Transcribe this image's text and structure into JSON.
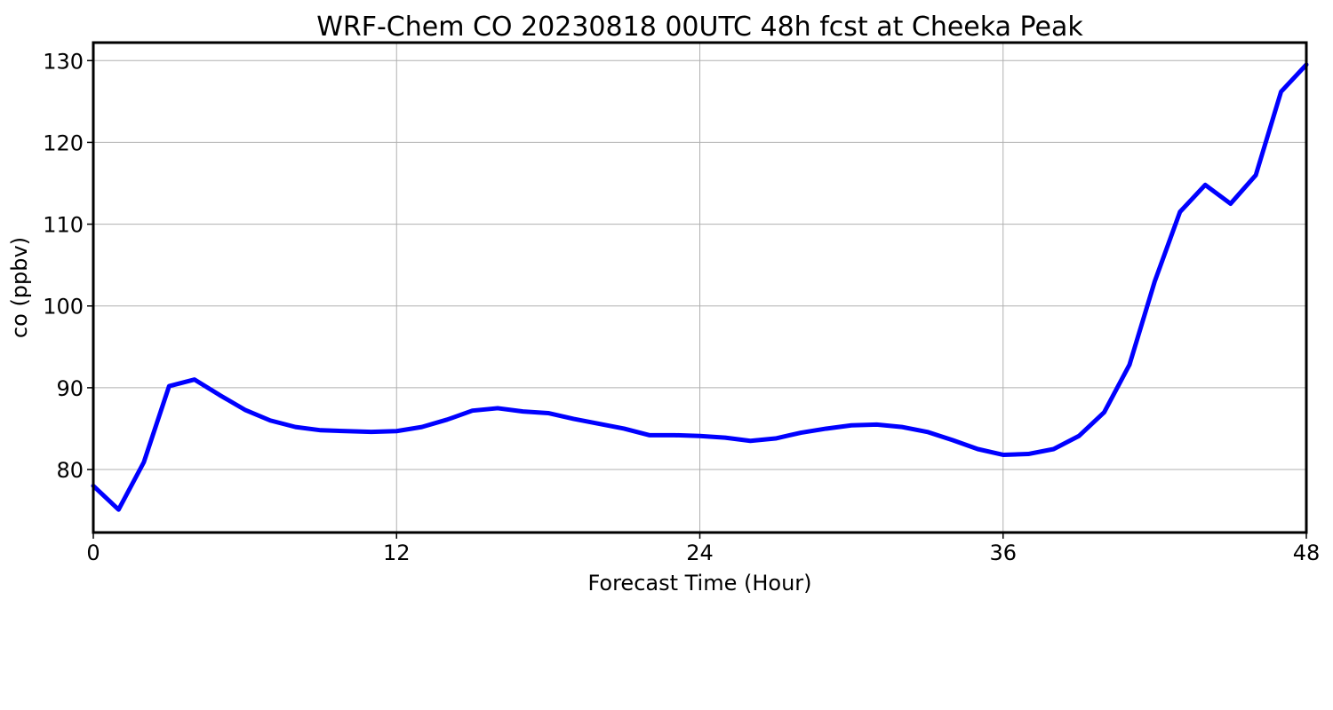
{
  "chart_data": {
    "type": "line",
    "title": "WRF-Chem CO  20230818 00UTC 48h fcst at Cheeka Peak",
    "xlabel": "Forecast Time (Hour)",
    "ylabel": "co  (ppbv)",
    "xlim": [
      0,
      48
    ],
    "ylim": [
      72.3,
      132.2
    ],
    "x_ticks": [
      0,
      12,
      24,
      36,
      48
    ],
    "y_ticks": [
      80,
      90,
      100,
      110,
      120,
      130
    ],
    "grid": true,
    "series": [
      {
        "color": "#0000ff",
        "x": [
          0,
          1,
          2,
          3,
          4,
          5,
          6,
          7,
          8,
          9,
          10,
          11,
          12,
          13,
          14,
          15,
          16,
          17,
          18,
          19,
          20,
          21,
          22,
          23,
          24,
          25,
          26,
          27,
          28,
          29,
          30,
          31,
          32,
          33,
          34,
          35,
          36,
          37,
          38,
          39,
          40,
          41,
          42,
          43,
          44,
          45,
          46,
          47,
          48
        ],
        "values": [
          78.0,
          75.1,
          80.9,
          90.2,
          91.0,
          89.1,
          87.3,
          86.0,
          85.2,
          84.8,
          84.7,
          84.6,
          84.7,
          85.2,
          86.1,
          87.2,
          87.5,
          87.1,
          86.9,
          86.2,
          85.6,
          85.0,
          84.2,
          84.2,
          84.1,
          83.9,
          83.5,
          83.8,
          84.5,
          85.0,
          85.4,
          85.5,
          85.2,
          84.6,
          83.6,
          82.5,
          81.8,
          81.9,
          82.5,
          84.1,
          87.0,
          92.8,
          103.0,
          111.5,
          114.8,
          112.5,
          116.0,
          126.2,
          129.5
        ]
      }
    ]
  }
}
